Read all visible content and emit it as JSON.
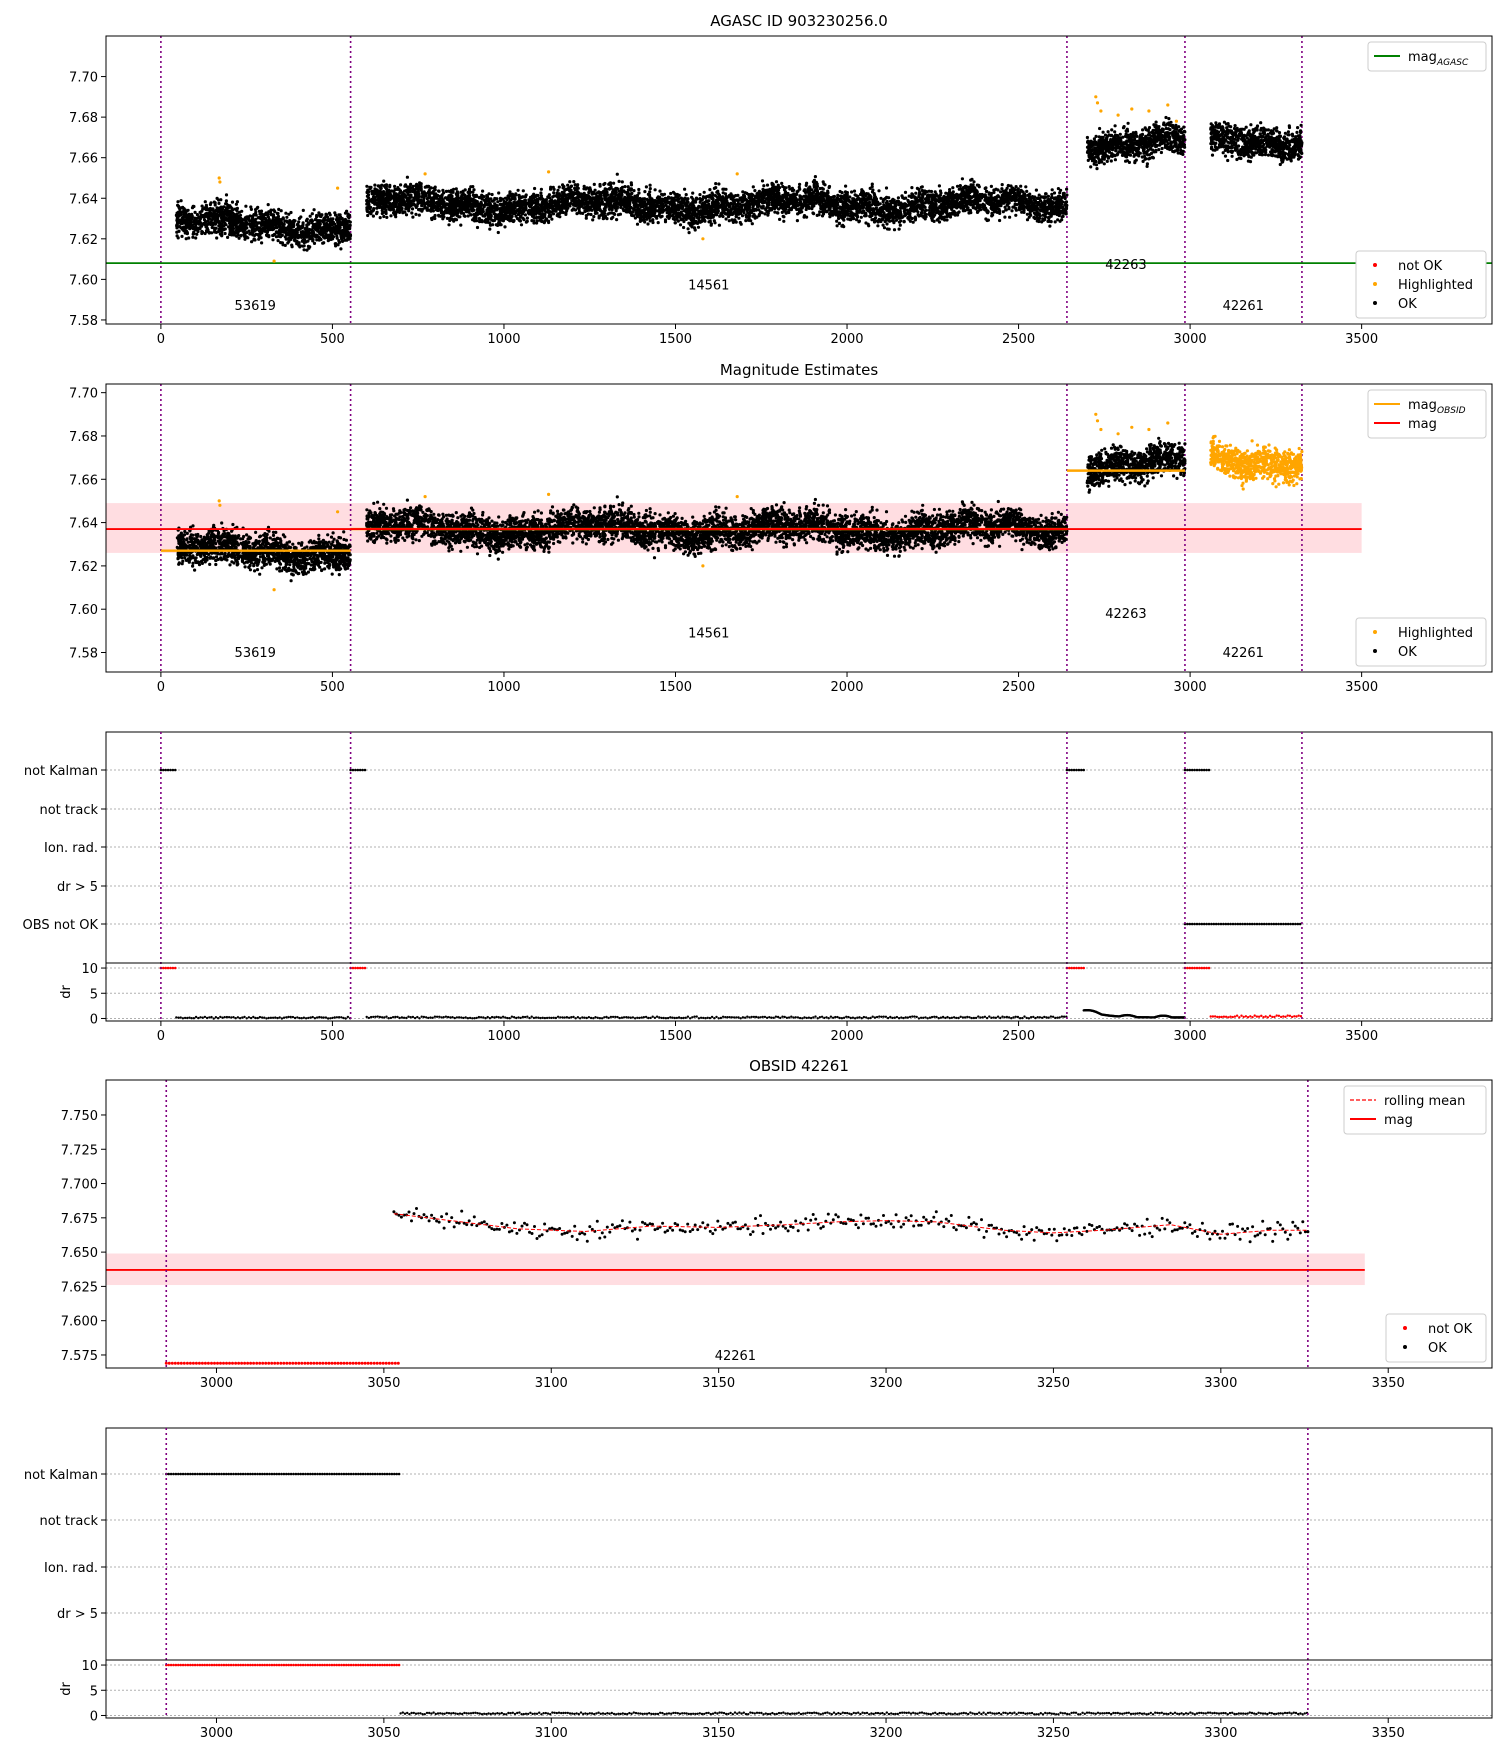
{
  "chart_data": [
    {
      "type": "scatter",
      "title": "AGASC ID 903230256.0",
      "xlim": [
        -160,
        3880
      ],
      "ylim": [
        7.578,
        7.72
      ],
      "xticks": [
        0,
        500,
        1000,
        1500,
        2000,
        2500,
        3000,
        3500
      ],
      "xtick_labels": [
        "0",
        "500",
        "1000",
        "1500",
        "2000",
        "2500",
        "3000",
        "3500"
      ],
      "yticks": [
        7.58,
        7.6,
        7.62,
        7.64,
        7.66,
        7.68,
        7.7
      ],
      "ytick_labels": [
        "7.58",
        "7.60",
        "7.62",
        "7.64",
        "7.66",
        "7.68",
        "7.70"
      ],
      "obsid_boundaries": [
        0,
        553,
        2641,
        2985,
        3326
      ],
      "obsid_labels": [
        {
          "text": "53619",
          "x": 275,
          "y": 7.585
        },
        {
          "text": "14561",
          "x": 1597,
          "y": 7.595
        },
        {
          "text": "42263",
          "x": 2813,
          "y": 7.605
        },
        {
          "text": "42261",
          "x": 3155,
          "y": 7.585
        }
      ],
      "mag_agasc": 7.608,
      "segments": [
        {
          "x0": 45,
          "x1": 553,
          "mean": 7.627,
          "spread": 0.0055,
          "color": "OK"
        },
        {
          "x0": 600,
          "x1": 2641,
          "mean": 7.637,
          "spread": 0.0055,
          "color": "OK"
        },
        {
          "x0": 2700,
          "x1": 2985,
          "mean": 7.667,
          "spread": 0.0055,
          "color": "OK"
        },
        {
          "x0": 3060,
          "x1": 3326,
          "mean": 7.669,
          "spread": 0.0055,
          "color": "OK"
        }
      ],
      "highlighted_points": [
        [
          170,
          7.65
        ],
        [
          172,
          7.648
        ],
        [
          330,
          7.609
        ],
        [
          515,
          7.645
        ],
        [
          770,
          7.652
        ],
        [
          1130,
          7.653
        ],
        [
          1580,
          7.62
        ],
        [
          1680,
          7.652
        ],
        [
          2725,
          7.69
        ],
        [
          2730,
          7.687
        ],
        [
          2740,
          7.683
        ],
        [
          2790,
          7.681
        ],
        [
          2830,
          7.684
        ],
        [
          2880,
          7.683
        ],
        [
          2935,
          7.686
        ],
        [
          2960,
          7.678
        ]
      ],
      "legend_top": {
        "position": "top-right",
        "entries": [
          {
            "label": "mag",
            "subscript": "AGASC",
            "color": "#008000"
          }
        ]
      },
      "legend_bottom": {
        "position": "lower-right",
        "entries": [
          {
            "label": "not OK",
            "color": "#ff0000"
          },
          {
            "label": "Highlighted",
            "color": "#ffa500"
          },
          {
            "label": "OK",
            "color": "#000000"
          }
        ]
      }
    },
    {
      "type": "scatter",
      "title": "Magnitude Estimates",
      "xlim": [
        -160,
        3880
      ],
      "ylim": [
        7.571,
        7.704
      ],
      "xticks": [
        0,
        500,
        1000,
        1500,
        2000,
        2500,
        3000,
        3500
      ],
      "xtick_labels": [
        "0",
        "500",
        "1000",
        "1500",
        "2000",
        "2500",
        "3000",
        "3500"
      ],
      "yticks": [
        7.58,
        7.6,
        7.62,
        7.64,
        7.66,
        7.68,
        7.7
      ],
      "ytick_labels": [
        "7.58",
        "7.60",
        "7.62",
        "7.64",
        "7.66",
        "7.68",
        "7.70"
      ],
      "obsid_boundaries": [
        0,
        553,
        2641,
        2985,
        3326
      ],
      "obsid_labels": [
        {
          "text": "53619",
          "x": 275,
          "y": 7.578
        },
        {
          "text": "14561",
          "x": 1597,
          "y": 7.587
        },
        {
          "text": "42263",
          "x": 2813,
          "y": 7.596
        },
        {
          "text": "42261",
          "x": 3155,
          "y": 7.578
        }
      ],
      "mag": 7.637,
      "mag_band": [
        7.626,
        7.649
      ],
      "mag_band_xmax": 3500,
      "mag_obsid": [
        {
          "x0": 0,
          "x1": 553,
          "value": 7.627
        },
        {
          "x0": 553,
          "x1": 2641,
          "value": 7.637
        },
        {
          "x0": 2641,
          "x1": 2985,
          "value": 7.664
        }
      ],
      "segments": [
        {
          "x0": 45,
          "x1": 553,
          "mean": 7.627,
          "spread": 0.0055,
          "color": "OK"
        },
        {
          "x0": 600,
          "x1": 2641,
          "mean": 7.637,
          "spread": 0.0055,
          "color": "OK"
        },
        {
          "x0": 2700,
          "x1": 2985,
          "mean": 7.667,
          "spread": 0.0055,
          "color": "OK"
        },
        {
          "x0": 3060,
          "x1": 3326,
          "mean": 7.669,
          "spread": 0.0055,
          "color": "Highlighted"
        }
      ],
      "highlighted_points": [
        [
          170,
          7.65
        ],
        [
          172,
          7.648
        ],
        [
          330,
          7.609
        ],
        [
          515,
          7.645
        ],
        [
          770,
          7.652
        ],
        [
          1130,
          7.653
        ],
        [
          1580,
          7.62
        ],
        [
          1680,
          7.652
        ],
        [
          2725,
          7.69
        ],
        [
          2730,
          7.687
        ],
        [
          2740,
          7.683
        ],
        [
          2790,
          7.681
        ],
        [
          2830,
          7.684
        ],
        [
          2880,
          7.683
        ],
        [
          2935,
          7.686
        ]
      ],
      "legend_top": {
        "position": "top-right",
        "entries": [
          {
            "label": "mag",
            "subscript": "OBSID",
            "color": "#ffa500"
          },
          {
            "label": "mag",
            "color": "#ff0000"
          }
        ]
      },
      "legend_bottom": {
        "position": "lower-right",
        "entries": [
          {
            "label": "Highlighted",
            "color": "#ffa500"
          },
          {
            "label": "OK",
            "color": "#000000"
          }
        ]
      }
    },
    {
      "type": "flags",
      "xlim": [
        -160,
        3880
      ],
      "xticks": [
        0,
        500,
        1000,
        1500,
        2000,
        2500,
        3000,
        3500
      ],
      "xtick_labels": [
        "0",
        "500",
        "1000",
        "1500",
        "2000",
        "2500",
        "3000",
        "3500"
      ],
      "flag_labels": [
        "not Kalman",
        "not track",
        "Ion. rad.",
        "dr > 5",
        "OBS not OK"
      ],
      "obsid_boundaries": [
        0,
        553,
        2641,
        2985,
        3326
      ],
      "flag_runs": [
        {
          "flag": 0,
          "x0": 0,
          "x1": 45
        },
        {
          "flag": 0,
          "x0": 553,
          "x1": 600
        },
        {
          "flag": 0,
          "x0": 2641,
          "x1": 2690
        },
        {
          "flag": 0,
          "x0": 2985,
          "x1": 3055
        },
        {
          "flag": 4,
          "x0": 2985,
          "x1": 3326
        }
      ],
      "dr_axis": {
        "ylim": [
          -0.5,
          11
        ],
        "yticks": [
          0,
          5,
          10
        ],
        "ytick_labels": [
          "0",
          "5",
          "10"
        ],
        "ylabel": "dr"
      },
      "dr_high_runs": [
        {
          "x0": 0,
          "x1": 45
        },
        {
          "x0": 553,
          "x1": 600
        },
        {
          "x0": 2641,
          "x1": 2690
        },
        {
          "x0": 2985,
          "x1": 3055
        }
      ],
      "dr_low_runs": [
        {
          "x0": 45,
          "x1": 553,
          "value": 0.15,
          "color": "black"
        },
        {
          "x0": 600,
          "x1": 2641,
          "value": 0.2,
          "color": "black"
        },
        {
          "x0": 3060,
          "x1": 3326,
          "value": 0.4,
          "color": "red"
        }
      ],
      "dr_hump": {
        "x0": 2690,
        "x1": 2985,
        "peak": 1.6,
        "base": 0.2
      }
    },
    {
      "type": "scatter",
      "title": "OBSID 42261",
      "xlim": [
        2967,
        3381
      ],
      "ylim": [
        7.5655,
        7.7755
      ],
      "xticks": [
        3000,
        3050,
        3100,
        3150,
        3200,
        3250,
        3300,
        3350
      ],
      "xtick_labels": [
        "3000",
        "3050",
        "3100",
        "3150",
        "3200",
        "3250",
        "3300",
        "3350"
      ],
      "yticks": [
        7.575,
        7.6,
        7.625,
        7.65,
        7.675,
        7.7,
        7.725,
        7.75
      ],
      "ytick_labels": [
        "7.575",
        "7.600",
        "7.625",
        "7.650",
        "7.675",
        "7.700",
        "7.725",
        "7.750"
      ],
      "obsid_boundaries": [
        2985,
        3326
      ],
      "obsid_labels": [
        {
          "text": "42261",
          "x": 3155,
          "y": 7.5715
        }
      ],
      "mag": 7.637,
      "mag_band": [
        7.626,
        7.649
      ],
      "mag_band_xmax": 3343,
      "not_ok_run": {
        "x0": 2985,
        "x1": 3055,
        "value": 7.569
      },
      "ok_run": {
        "x0": 3053,
        "x1": 3326,
        "mean": 7.669,
        "spread": 0.0045
      },
      "rolling_mean": [
        [
          3053,
          7.678
        ],
        [
          3070,
          7.673
        ],
        [
          3090,
          7.667
        ],
        [
          3110,
          7.665
        ],
        [
          3130,
          7.669
        ],
        [
          3150,
          7.668
        ],
        [
          3170,
          7.67
        ],
        [
          3185,
          7.672
        ],
        [
          3200,
          7.673
        ],
        [
          3215,
          7.672
        ],
        [
          3235,
          7.666
        ],
        [
          3250,
          7.664
        ],
        [
          3265,
          7.666
        ],
        [
          3285,
          7.67
        ],
        [
          3300,
          7.663
        ],
        [
          3315,
          7.666
        ],
        [
          3326,
          7.666
        ]
      ],
      "legend_top": {
        "position": "top-right",
        "entries": [
          {
            "label": "rolling mean",
            "color": "#ff0000",
            "dashed": true
          },
          {
            "label": "mag",
            "color": "#ff0000"
          }
        ]
      },
      "legend_bottom": {
        "position": "lower-right",
        "entries": [
          {
            "label": "not OK",
            "color": "#ff0000"
          },
          {
            "label": "OK",
            "color": "#000000"
          }
        ]
      }
    },
    {
      "type": "flags",
      "xlim": [
        2967,
        3381
      ],
      "xticks": [
        3000,
        3050,
        3100,
        3150,
        3200,
        3250,
        3300,
        3350
      ],
      "xtick_labels": [
        "3000",
        "3050",
        "3100",
        "3150",
        "3200",
        "3250",
        "3300",
        "3350"
      ],
      "flag_labels": [
        "not Kalman",
        "not track",
        "Ion. rad.",
        "dr > 5"
      ],
      "obsid_boundaries": [
        2985,
        3326
      ],
      "flag_runs": [
        {
          "flag": 0,
          "x0": 2985,
          "x1": 3055
        }
      ],
      "dr_axis": {
        "ylim": [
          -0.5,
          11
        ],
        "yticks": [
          0,
          5,
          10
        ],
        "ytick_labels": [
          "0",
          "5",
          "10"
        ],
        "ylabel": "dr"
      },
      "dr_high_runs": [
        {
          "x0": 2985,
          "x1": 3055
        }
      ],
      "dr_low_runs": [
        {
          "x0": 3055,
          "x1": 3326,
          "value": 0.4,
          "color": "black"
        }
      ],
      "dr_hump": null
    }
  ]
}
